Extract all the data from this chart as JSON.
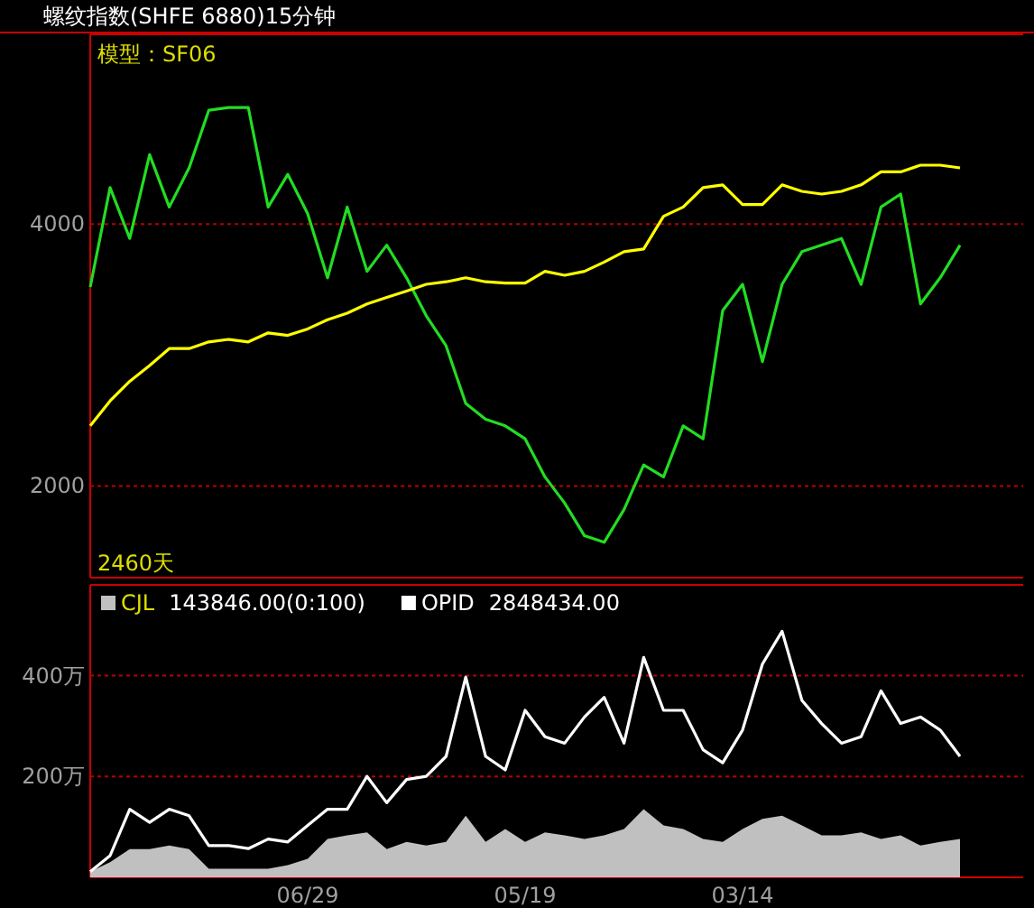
{
  "chart_data": [
    {
      "type": "line",
      "title": "螺纹指数(SHFE 6880)15分钟",
      "annotations": [
        "模型：SF06",
        "2460天"
      ],
      "categories": [
        null,
        null,
        null,
        null,
        null,
        null,
        null,
        null,
        null,
        null,
        null,
        null,
        null,
        null,
        null,
        null,
        null,
        null,
        null,
        null,
        null,
        null,
        null,
        null,
        null,
        null,
        null,
        null,
        null,
        null,
        null,
        null,
        null,
        null,
        null,
        null,
        null,
        null,
        null,
        null,
        null,
        null,
        null,
        null,
        null
      ],
      "series": [
        {
          "color": "#22dd22",
          "values": [
            3520,
            4280,
            3890,
            4530,
            4130,
            4430,
            4870,
            4890,
            4890,
            4130,
            4380,
            4080,
            3590,
            4130,
            3640,
            3840,
            3590,
            3300,
            3070,
            2630,
            2510,
            2460,
            2360,
            2070,
            1870,
            1620,
            1570,
            1820,
            2160,
            2070,
            2460,
            2360,
            3340,
            3540,
            2950,
            3540,
            3790,
            3840,
            3890,
            3540,
            4130,
            4230,
            3390,
            3590,
            3840
          ]
        },
        {
          "color": "#ffff00",
          "values": [
            2460,
            2650,
            2800,
            2920,
            3050,
            3050,
            3100,
            3120,
            3100,
            3170,
            3150,
            3200,
            3270,
            3320,
            3390,
            3440,
            3490,
            3540,
            3560,
            3590,
            3560,
            3550,
            3550,
            3640,
            3610,
            3640,
            3710,
            3790,
            3810,
            4060,
            4130,
            4280,
            4300,
            4150,
            4150,
            4300,
            4250,
            4230,
            4250,
            4300,
            4400,
            4400,
            4450,
            4450,
            4430
          ]
        }
      ],
      "ylim": [
        1300,
        5450
      ],
      "yticks": [
        2000,
        4000
      ],
      "grid": "y",
      "tick_labels": "y"
    },
    {
      "type": "line",
      "annotations": [
        "143846.00(0:100)",
        "2848434.00"
      ],
      "legend": "top left",
      "categories": [
        null,
        null,
        null,
        null,
        null,
        null,
        null,
        null,
        null,
        null,
        null,
        "06/29",
        null,
        null,
        null,
        null,
        null,
        null,
        null,
        null,
        null,
        null,
        "05/19",
        null,
        null,
        null,
        null,
        null,
        null,
        null,
        null,
        null,
        null,
        "03/14",
        null,
        null,
        null,
        null,
        null,
        null,
        null,
        null,
        null,
        null,
        null
      ],
      "series": [
        {
          "name": "CJL",
          "type": "area",
          "color": "#c0c0c0",
          "values": [
            11,
            30,
            56,
            56,
            63,
            56,
            17,
            17,
            17,
            17,
            24,
            37,
            76,
            83,
            89,
            56,
            70,
            63,
            70,
            122,
            70,
            96,
            70,
            89,
            83,
            76,
            83,
            96,
            135,
            103,
            96,
            76,
            70,
            96,
            116,
            122,
            103,
            83,
            83,
            89,
            76,
            83,
            63,
            70,
            76
          ]
        },
        {
          "name": "OPID",
          "color": "#ffffff",
          "values": [
            11,
            43,
            135,
            109,
            135,
            122,
            63,
            63,
            57,
            76,
            70,
            103,
            135,
            135,
            200,
            148,
            194,
            200,
            240,
            397,
            240,
            213,
            331,
            279,
            266,
            318,
            357,
            266,
            436,
            331,
            331,
            253,
            227,
            292,
            423,
            488,
            351,
            305,
            266,
            279,
            370,
            305,
            318,
            292,
            240
          ]
        }
      ],
      "ylim": [
        0,
        580
      ],
      "yticks": [
        {
          "value": 200,
          "label": "200万"
        },
        {
          "value": 400,
          "label": "400万"
        }
      ],
      "grid": "y"
    }
  ]
}
